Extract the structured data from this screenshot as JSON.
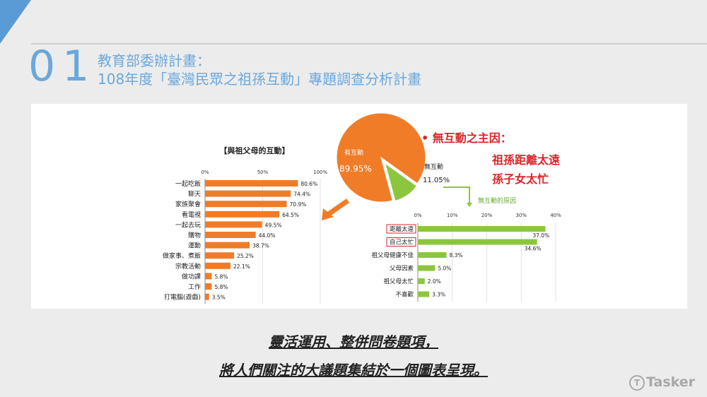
{
  "slide": {
    "number": "01",
    "title_line1": "教育部委辦計畫：",
    "title_line2": "108年度「臺灣民眾之祖孫互動」專題調查分析計畫"
  },
  "caption": {
    "line1": "靈活運用、整併問卷題項，",
    "line2": "將人們關注的大議題集結於一個圖表呈現。"
  },
  "logo": {
    "text": "Tasker",
    "icon": "tasker-logo-icon"
  },
  "annotation": {
    "label": "• 無互動之主因：",
    "reason1": "祖孫距離太遠",
    "reason2": "孫子女太忙"
  },
  "colors": {
    "orange": "#f07c28",
    "green": "#8cc63f",
    "red": "#d9262b",
    "panel": "#ffffff"
  },
  "chart_data": [
    {
      "type": "bar",
      "title": "【與祖父母的互動】",
      "categories": [
        "一起吃飯",
        "聊天",
        "家族聚會",
        "看電視",
        "一起去玩",
        "購物",
        "運動",
        "做家事、煮飯",
        "宗教活動",
        "做功課",
        "工作",
        "打電腦(遊戲)"
      ],
      "values": [
        80.6,
        74.4,
        70.9,
        64.5,
        49.5,
        44.0,
        38.7,
        25.2,
        22.1,
        5.8,
        5.8,
        3.5
      ],
      "value_labels": [
        "80.6%",
        "74.4%",
        "70.9%",
        "64.5%",
        "49.5%",
        "44.0%",
        "38.7%",
        "25.2%",
        "22.1%",
        "5.8%",
        "5.8%",
        "3.5%"
      ],
      "ticks": [
        "0%",
        "50%",
        "100%"
      ],
      "xlim": [
        0,
        100
      ],
      "orientation": "horizontal",
      "color": "#f07c28"
    },
    {
      "type": "pie",
      "slices": [
        {
          "name": "有互動",
          "value": 89.95,
          "label": "89.95%",
          "color": "#f07c28"
        },
        {
          "name": "無互動",
          "value": 11.05,
          "label": "11.05%",
          "color": "#8cc63f"
        }
      ]
    },
    {
      "type": "bar",
      "title": "無互動的原因",
      "categories": [
        "距離太遠",
        "自己太忙",
        "祖父母健康不佳",
        "父母因素",
        "祖父母太忙",
        "不喜歡"
      ],
      "highlighted": [
        "距離太遠",
        "自己太忙"
      ],
      "values": [
        37.0,
        34.6,
        8.3,
        5.0,
        2.0,
        3.3
      ],
      "value_labels": [
        "37.0%",
        "34.6%",
        "8.3%",
        "5.0%",
        "2.0%",
        "3.3%"
      ],
      "ticks": [
        "0%",
        "10%",
        "20%",
        "30%",
        "40%"
      ],
      "xlim": [
        0,
        40
      ],
      "orientation": "horizontal",
      "color": "#8cc63f"
    }
  ]
}
